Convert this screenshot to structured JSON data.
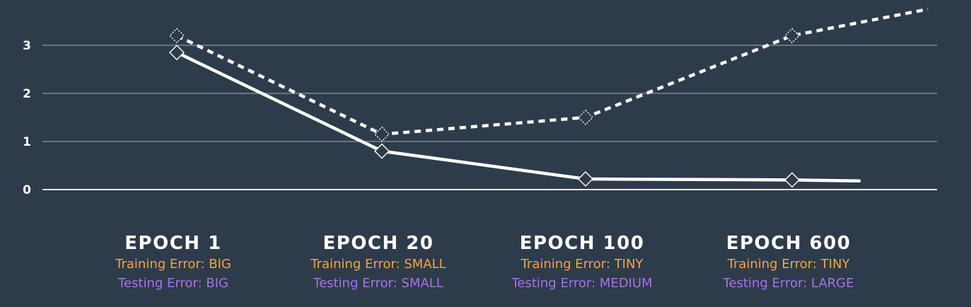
{
  "chart_data": {
    "type": "line",
    "categories": [
      "EPOCH 1",
      "EPOCH 20",
      "EPOCH 100",
      "EPOCH 600"
    ],
    "y_ticks": [
      0,
      1,
      2,
      3
    ],
    "ylim": [
      0,
      3.8
    ],
    "grid": true,
    "series": [
      {
        "style": "solid",
        "color": "#ffffff",
        "values": [
          2.85,
          0.8,
          0.22,
          0.2
        ],
        "end_value": 0.18
      },
      {
        "style": "dashed",
        "color": "#ffffff",
        "values": [
          3.2,
          1.15,
          1.5,
          3.2
        ],
        "end_value": 3.75
      }
    ],
    "labels": [
      {
        "title": "EPOCH 1",
        "training": "Training Error: BIG",
        "testing": "Testing Error: BIG"
      },
      {
        "title": "EPOCH 20",
        "training": "Training Error: SMALL",
        "testing": "Testing Error: SMALL"
      },
      {
        "title": "EPOCH 100",
        "training": "Training Error: TINY",
        "testing": "Testing Error: MEDIUM"
      },
      {
        "title": "EPOCH 600",
        "training": "Training Error: TINY",
        "testing": "Testing Error: LARGE"
      }
    ]
  },
  "colors": {
    "background": "#2e3b4a",
    "grid": "#8e98a3",
    "training": "#f0a63a",
    "testing": "#a872e8"
  }
}
